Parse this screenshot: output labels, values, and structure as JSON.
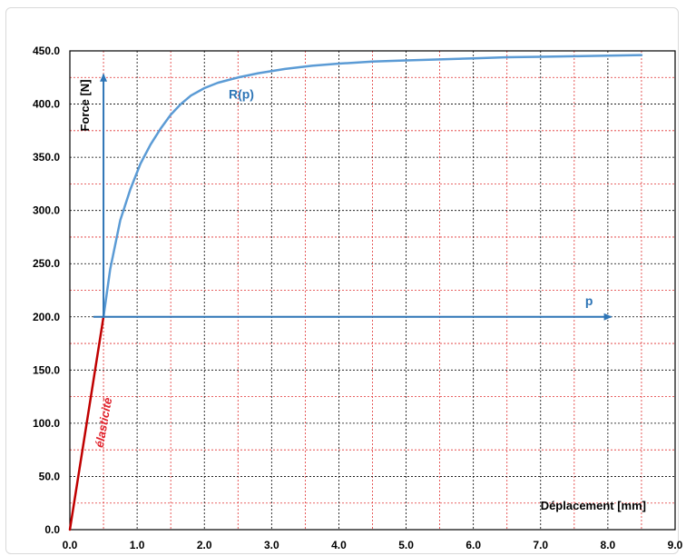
{
  "chart_data": {
    "type": "line",
    "title": "",
    "xlabel": "Déplacement  [mm]",
    "ylabel": "Force [N]",
    "xlim": [
      0,
      9
    ],
    "ylim": [
      0,
      450
    ],
    "x_ticks": [
      "0.0",
      "1.0",
      "2.0",
      "3.0",
      "4.0",
      "5.0",
      "6.0",
      "7.0",
      "8.0",
      "9.0"
    ],
    "y_ticks": [
      "0.0",
      "50.0",
      "100.0",
      "150.0",
      "200.0",
      "250.0",
      "300.0",
      "350.0",
      "400.0",
      "450.0"
    ],
    "grid": {
      "major": true,
      "minor": true,
      "minor_color": "#e03030"
    },
    "series": [
      {
        "role": "elastic",
        "color": "#c00000",
        "x": [
          0,
          0.5
        ],
        "y": [
          0,
          200
        ]
      },
      {
        "role": "hardening",
        "color": "#5b9bd5",
        "x": [
          0.5,
          0.6,
          0.75,
          0.9,
          1.05,
          1.2,
          1.35,
          1.5,
          1.65,
          1.8,
          2.0,
          2.2,
          2.5,
          2.8,
          3.2,
          3.6,
          4.0,
          4.5,
          5.0,
          5.5,
          6.0,
          6.5,
          7.0,
          7.5,
          8.0,
          8.5
        ],
        "y": [
          200,
          245,
          291,
          320,
          344,
          362,
          377,
          390,
          400,
          408,
          415,
          420,
          425,
          429,
          433,
          436,
          438,
          440,
          441,
          442,
          443,
          444,
          444.5,
          445,
          445.5,
          446
        ]
      }
    ],
    "arrows": [
      {
        "color": "#2e75b6",
        "from": [
          0.5,
          200
        ],
        "to": [
          0.5,
          428
        ]
      },
      {
        "color": "#2e75b6",
        "from": [
          0.35,
          200
        ],
        "to": [
          8.05,
          200
        ]
      }
    ],
    "annotations": [
      {
        "text": "R(p)",
        "x": 2.55,
        "y": 405,
        "color": "#2e75b6"
      },
      {
        "text": "p",
        "x": 7.72,
        "y": 211,
        "color": "#2e75b6"
      },
      {
        "text": "élasticité",
        "x": 0.56,
        "y": 100,
        "color": "#e0202a",
        "rotation": -80
      }
    ]
  }
}
